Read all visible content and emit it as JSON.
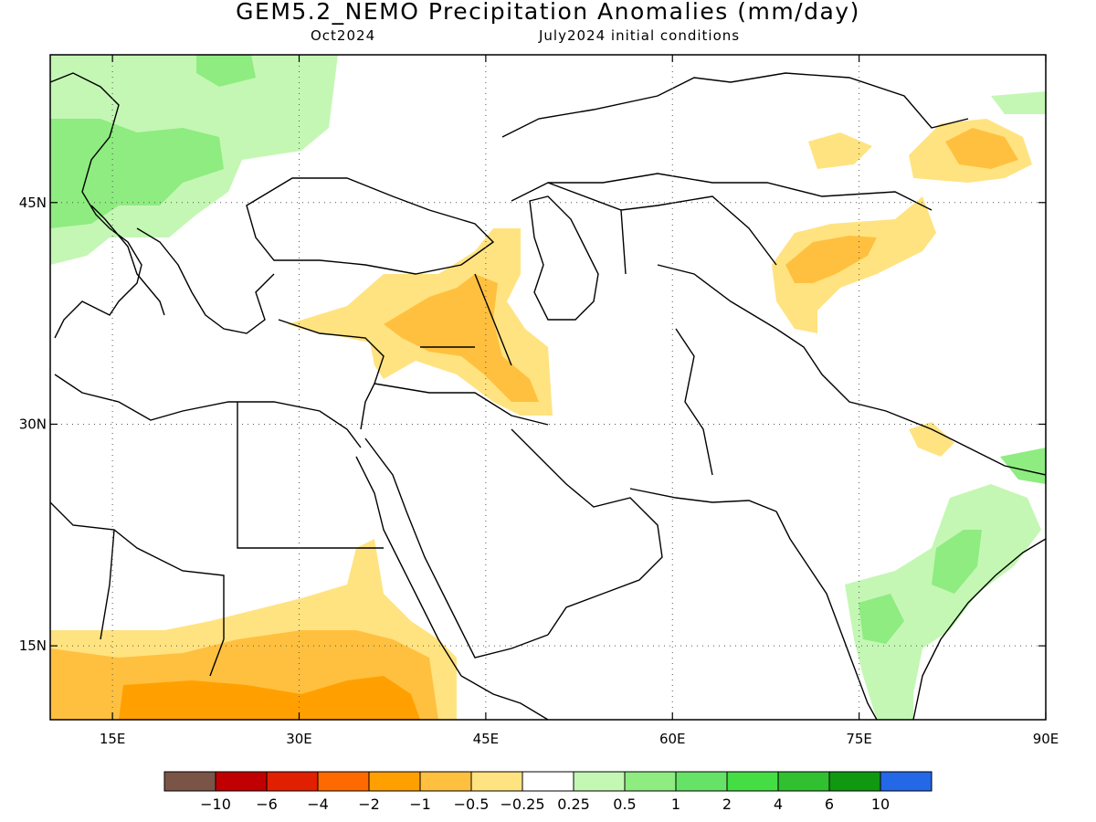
{
  "title": "GEM5.2_NEMO Precipitation Anomalies (mm/day)",
  "subtitle_left": "Oct2024",
  "subtitle_right": "July2024 initial conditions",
  "map": {
    "lon_range": [
      10,
      90
    ],
    "lat_range": [
      10,
      55
    ],
    "lon_ticks": [
      {
        "value": 15,
        "label": "15E"
      },
      {
        "value": 30,
        "label": "30E"
      },
      {
        "value": 45,
        "label": "45E"
      },
      {
        "value": 60,
        "label": "60E"
      },
      {
        "value": 75,
        "label": "75E"
      },
      {
        "value": 90,
        "label": "90E"
      }
    ],
    "lat_ticks": [
      {
        "value": 45,
        "label": "45N"
      },
      {
        "value": 30,
        "label": "30N"
      },
      {
        "value": 15,
        "label": "15N"
      }
    ],
    "grid": true
  },
  "colorbar": {
    "colors": [
      "#7a5447",
      "#c00000",
      "#e02000",
      "#ff6a00",
      "#ffa000",
      "#ffc040",
      "#ffe380",
      "#ffffff",
      "#c4f7b4",
      "#8eec80",
      "#66e366",
      "#44dd44",
      "#30c030",
      "#109810",
      "#2468e8"
    ],
    "labels": [
      "−10",
      "−6",
      "−4",
      "−2",
      "−1",
      "−0.5",
      "−0.25",
      "0.25",
      "0.5",
      "1",
      "2",
      "4",
      "6",
      "10"
    ]
  },
  "anomaly_colors": {
    "dry_light": "#ffe380",
    "dry_mid": "#ffc040",
    "dry_strong": "#ffa000",
    "wet_light": "#c4f7b4",
    "wet_mid": "#8eec80",
    "wet_strong": "#66e366"
  }
}
